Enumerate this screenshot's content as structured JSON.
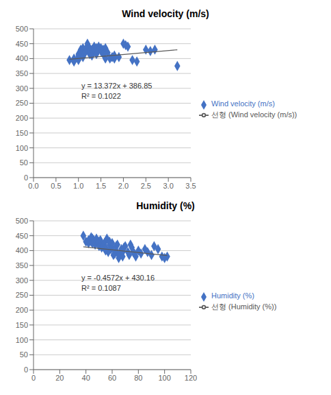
{
  "chart_data": [
    {
      "type": "scatter",
      "title": "Wind velocity (m/s)",
      "xlim": [
        0,
        3.5
      ],
      "ylim": [
        0,
        500
      ],
      "xticks": [
        {
          "value": 0,
          "label": "0.0"
        },
        0.5,
        {
          "value": 1.0,
          "label": "1.0"
        },
        1.5,
        {
          "value": 2.0,
          "label": "2.0"
        },
        2.5,
        {
          "value": 3.0,
          "label": "3.0"
        },
        3.5
      ],
      "yticks": [
        0,
        50,
        100,
        150,
        200,
        250,
        300,
        350,
        400,
        450,
        500
      ],
      "grid": true,
      "legend": "right",
      "annotations": [
        {
          "text": "y = 13.372x + 386.85"
        },
        {
          "text": "R² = 0.1022"
        }
      ],
      "series": [
        {
          "name": "Wind velocity (m/s)",
          "type": "scatter",
          "marker": "diamond",
          "color": "#4472c4",
          "x": [
            0.8,
            0.9,
            0.9,
            1.0,
            1.0,
            1.0,
            1.0,
            1.0,
            1.05,
            1.05,
            1.1,
            1.1,
            1.1,
            1.1,
            1.15,
            1.15,
            1.2,
            1.2,
            1.2,
            1.25,
            1.25,
            1.25,
            1.3,
            1.3,
            1.3,
            1.35,
            1.35,
            1.4,
            1.4,
            1.45,
            1.45,
            1.5,
            1.5,
            1.55,
            1.55,
            1.6,
            1.6,
            1.65,
            1.7,
            1.75,
            1.8,
            1.8,
            1.9,
            2.0,
            2.05,
            2.1,
            2.2,
            2.3,
            2.5,
            2.6,
            2.7,
            3.2
          ],
          "values": [
            395,
            400,
            390,
            405,
            415,
            395,
            400,
            410,
            430,
            420,
            435,
            425,
            415,
            405,
            430,
            420,
            450,
            440,
            430,
            435,
            415,
            425,
            430,
            420,
            410,
            440,
            430,
            435,
            415,
            440,
            430,
            435,
            425,
            430,
            415,
            400,
            435,
            420,
            400,
            405,
            400,
            410,
            405,
            450,
            445,
            440,
            395,
            390,
            430,
            425,
            430,
            375
          ]
        },
        {
          "name": "선형 (Wind velocity (m/s))",
          "type": "line",
          "color": "#595959",
          "x": [
            0.8,
            3.2
          ],
          "values": [
            397.5476,
            429.6404
          ]
        }
      ]
    },
    {
      "type": "scatter",
      "title": "Humidity (%)",
      "xlim": [
        0,
        120
      ],
      "ylim": [
        0,
        500
      ],
      "xticks": [
        0,
        20,
        40,
        60,
        80,
        100,
        120
      ],
      "yticks": [
        0,
        50,
        100,
        150,
        200,
        250,
        300,
        350,
        400,
        450,
        500
      ],
      "grid": true,
      "legend": "right",
      "annotations": [
        {
          "text": "y = -0.4572x + 430.16"
        },
        {
          "text": "R² = 0.1087"
        }
      ],
      "series": [
        {
          "name": "Humidity (%)",
          "type": "scatter",
          "marker": "diamond",
          "color": "#4472c4",
          "x": [
            38,
            40,
            42,
            42,
            44,
            44,
            45,
            45,
            46,
            47,
            48,
            48,
            49,
            50,
            50,
            51,
            52,
            52,
            53,
            54,
            55,
            55,
            56,
            57,
            58,
            58,
            59,
            60,
            60,
            61,
            62,
            63,
            63,
            64,
            65,
            65,
            66,
            67,
            68,
            68,
            69,
            70,
            72,
            73,
            74,
            75,
            76,
            77,
            78,
            80,
            82,
            85,
            87,
            90,
            92,
            95,
            98,
            100,
            102
          ],
          "values": [
            450,
            430,
            425,
            435,
            445,
            430,
            425,
            440,
            435,
            420,
            430,
            440,
            425,
            415,
            430,
            435,
            420,
            410,
            415,
            425,
            410,
            400,
            440,
            395,
            420,
            430,
            405,
            410,
            425,
            385,
            390,
            400,
            415,
            420,
            375,
            385,
            390,
            405,
            395,
            380,
            410,
            415,
            395,
            385,
            420,
            410,
            395,
            390,
            380,
            400,
            390,
            405,
            395,
            385,
            415,
            405,
            380,
            375,
            380
          ]
        },
        {
          "name": "선형 (Humidity (%))",
          "type": "line",
          "color": "#595959",
          "x": [
            38,
            102
          ],
          "values": [
            412.7864,
            383.5256
          ]
        }
      ]
    }
  ]
}
